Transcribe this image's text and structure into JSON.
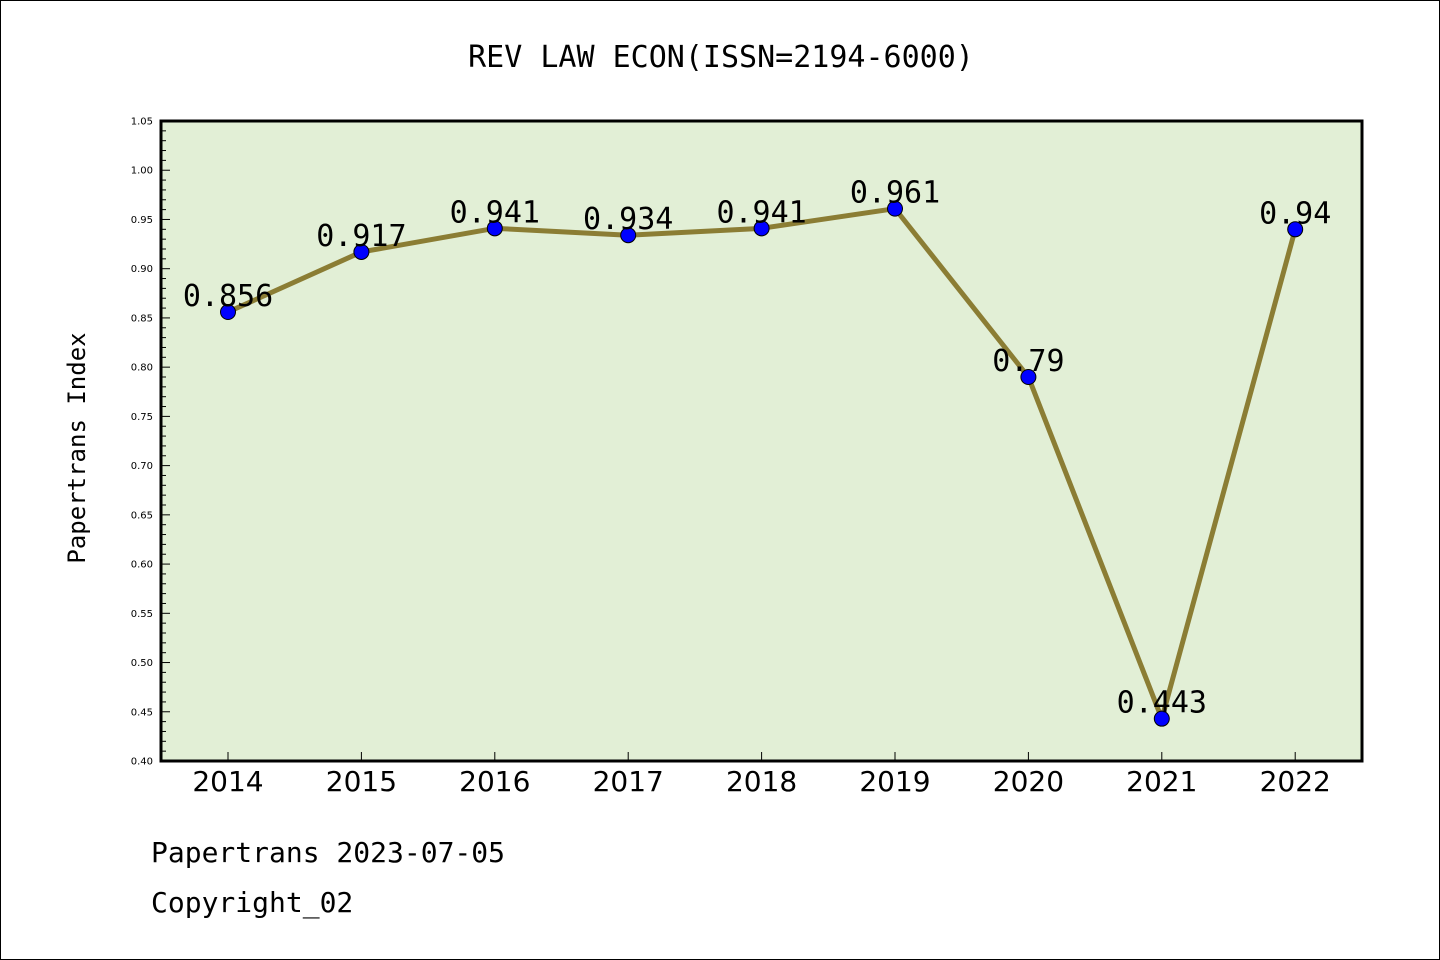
{
  "chart_data": {
    "type": "line",
    "title": "REV LAW ECON(ISSN=2194-6000)",
    "xlabel": "",
    "ylabel": "Papertrans Index",
    "categories": [
      "2014",
      "2015",
      "2016",
      "2017",
      "2018",
      "2019",
      "2020",
      "2021",
      "2022"
    ],
    "values": [
      0.856,
      0.917,
      0.941,
      0.934,
      0.941,
      0.961,
      0.79,
      0.443,
      0.94
    ],
    "value_labels": [
      "0.856",
      "0.917",
      "0.941",
      "0.934",
      "0.941",
      "0.961",
      "0.79",
      "0.443",
      "0.94"
    ],
    "ylim": [
      0.4,
      1.05
    ],
    "yticks": [
      "0.40",
      "0.45",
      "0.50",
      "0.55",
      "0.60",
      "0.65",
      "0.70",
      "0.75",
      "0.80",
      "0.85",
      "0.90",
      "0.95",
      "1.00",
      "1.05"
    ],
    "grid": false,
    "colors": {
      "plot_background": "#e2efd6",
      "line": "#8b7d34",
      "marker": "#0000ff"
    }
  },
  "footer": {
    "date_text": "Papertrans 2023-07-05",
    "copyright_text": "Copyright_02"
  }
}
